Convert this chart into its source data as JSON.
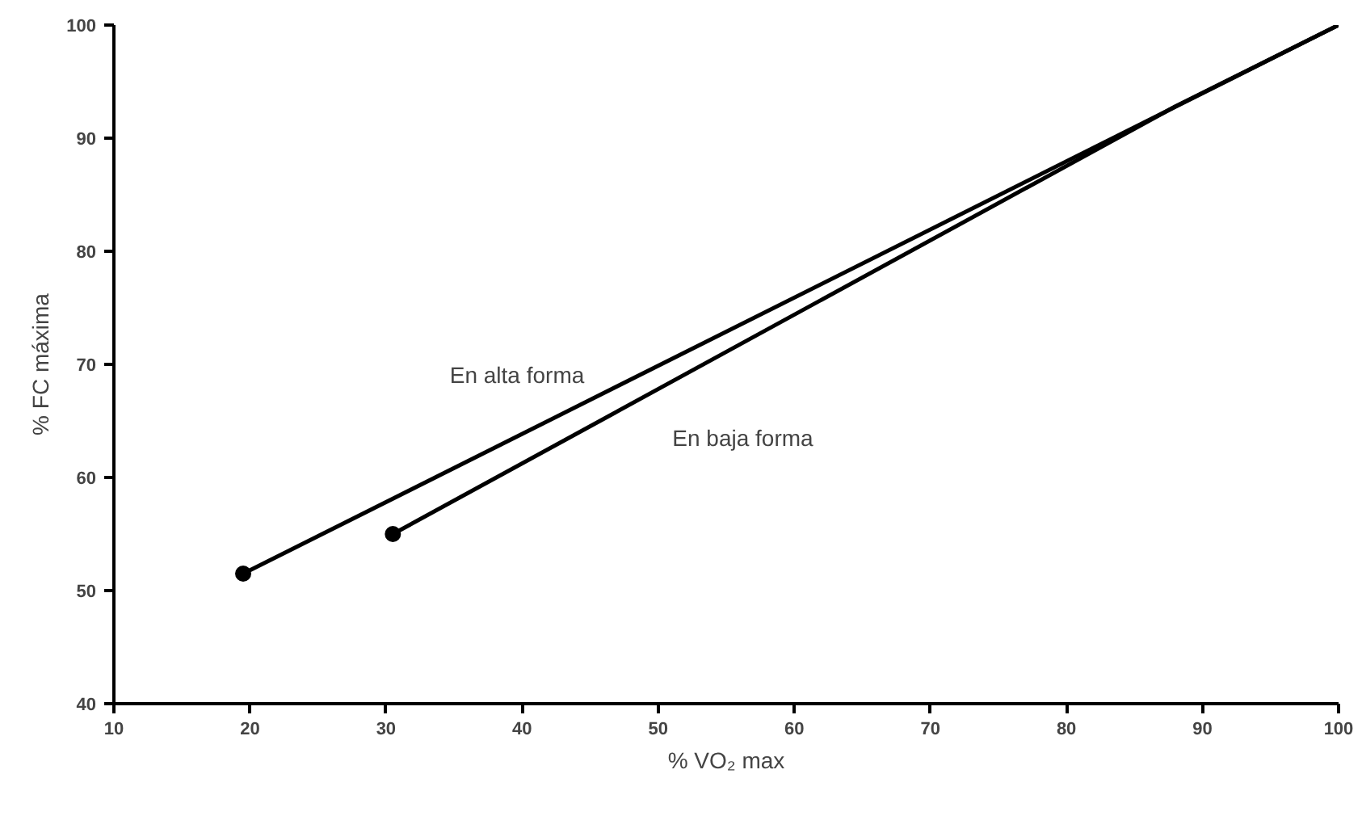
{
  "chart_data": {
    "type": "line",
    "xlabel": "% VO₂ max",
    "ylabel": "% FC máxima",
    "series": [
      {
        "name": "En alta forma",
        "color": "#000000",
        "x": [
          19.5,
          100
        ],
        "values": [
          51.5,
          100
        ]
      },
      {
        "name": "En baja forma",
        "color": "#000000",
        "x": [
          30.5,
          88,
          100
        ],
        "values": [
          55,
          92.8,
          100
        ]
      },
      {
        "type": "scatter",
        "color": "#000000",
        "x": [
          19.5,
          30.5
        ],
        "values": [
          51.5,
          55
        ],
        "marker": "circle"
      }
    ],
    "xlim": [
      10,
      100
    ],
    "ylim": [
      40,
      100
    ],
    "xticks": [
      10,
      20,
      30,
      40,
      50,
      60,
      70,
      80,
      90,
      100
    ],
    "yticks": [
      40,
      50,
      60,
      70,
      80,
      90,
      100
    ],
    "grid": false,
    "legend": false,
    "marker": "none",
    "line_style": "solid"
  }
}
